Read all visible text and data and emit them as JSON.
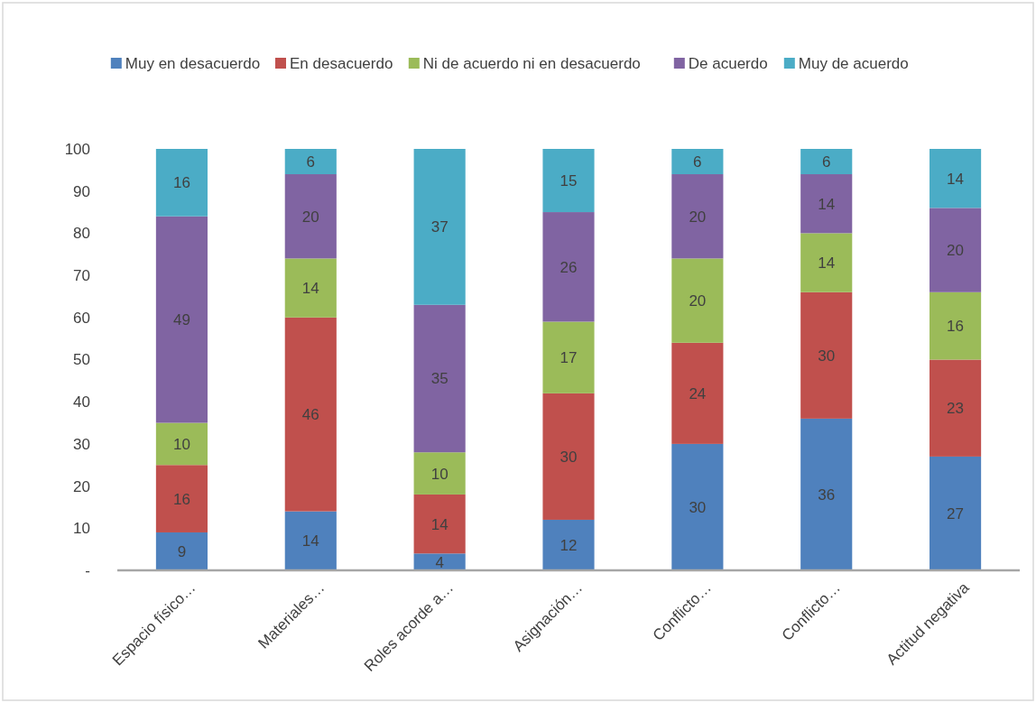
{
  "chart_data": {
    "type": "bar",
    "stacked": true,
    "categories": [
      "Espacio físico…",
      "Materiales…",
      "Roles acorde a…",
      "Asignación…",
      "Conflicto…",
      "Conflicto…",
      "Actitud negativa"
    ],
    "series": [
      {
        "name": "Muy en desacuerdo",
        "color": "#4f81bd",
        "values": [
          9,
          14,
          4,
          12,
          30,
          36,
          27
        ]
      },
      {
        "name": "En desacuerdo",
        "color": "#c0504d",
        "values": [
          16,
          46,
          14,
          30,
          24,
          30,
          23
        ]
      },
      {
        "name": "Ni de acuerdo ni en desacuerdo",
        "color": "#9bbb59",
        "values": [
          10,
          14,
          10,
          17,
          20,
          14,
          16
        ]
      },
      {
        "name": "De acuerdo",
        "color": "#8064a2",
        "values": [
          49,
          20,
          35,
          26,
          20,
          14,
          20
        ]
      },
      {
        "name": "Muy de acuerdo",
        "color": "#4bacc6",
        "values": [
          16,
          6,
          37,
          15,
          6,
          6,
          14
        ]
      }
    ],
    "ylim": [
      0,
      100
    ],
    "yticks": [
      {
        "value": 0,
        "label": "-"
      },
      10,
      20,
      30,
      40,
      50,
      60,
      70,
      80,
      90,
      100
    ],
    "data_labels": true,
    "legend": "top",
    "grid": false
  }
}
